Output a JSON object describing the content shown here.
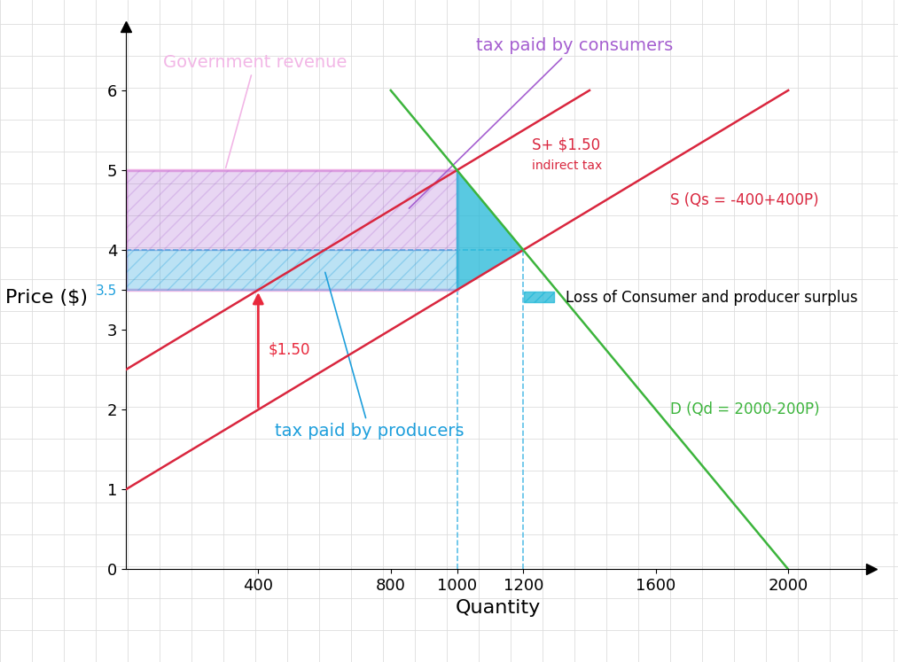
{
  "chart_data": {
    "type": "line",
    "x_label": "Quantity",
    "y_label": "Price ($)",
    "xlim": [
      0,
      2250
    ],
    "ylim": [
      0,
      6.8
    ],
    "xticks": [
      400,
      800,
      1000,
      1200,
      1600,
      2000
    ],
    "yticks": [
      0,
      1,
      2,
      3,
      3.5,
      4,
      5,
      6
    ],
    "series": [
      {
        "name": "S (Qs = -400+400P)",
        "color": "#d9263e",
        "x": [
          0,
          2000
        ],
        "values": [
          1,
          6
        ]
      },
      {
        "name": "S+ $1.50",
        "note": "indirect tax",
        "color": "#d9263e",
        "x": [
          0,
          1400
        ],
        "values": [
          2.5,
          6
        ]
      },
      {
        "name": "D (Qd = 2000-200P)",
        "color": "#3cb43c",
        "x": [
          800,
          2000
        ],
        "values": [
          6,
          0
        ]
      }
    ],
    "equilibrium": {
      "quantity": 1200,
      "price": 4
    },
    "after_tax": {
      "quantity": 1000,
      "consumer_price": 5,
      "producer_price": 3.5
    },
    "tax": {
      "amount": 1.5,
      "label": "$1.50",
      "at_quantity": 400,
      "color": "#e8283c"
    },
    "areas": {
      "government_revenue": {
        "label": "Government revenue",
        "color": "#f2b6e6"
      },
      "consumer_tax": {
        "label": "tax paid by consumers",
        "color": "#a55fd0"
      },
      "producer_tax": {
        "label": "tax paid by producers",
        "color": "#1e9fdc"
      },
      "deadweight_loss": {
        "label": "Loss of Consumer and producer surplus",
        "color": "#22b8d8"
      }
    },
    "legend": "center right"
  }
}
